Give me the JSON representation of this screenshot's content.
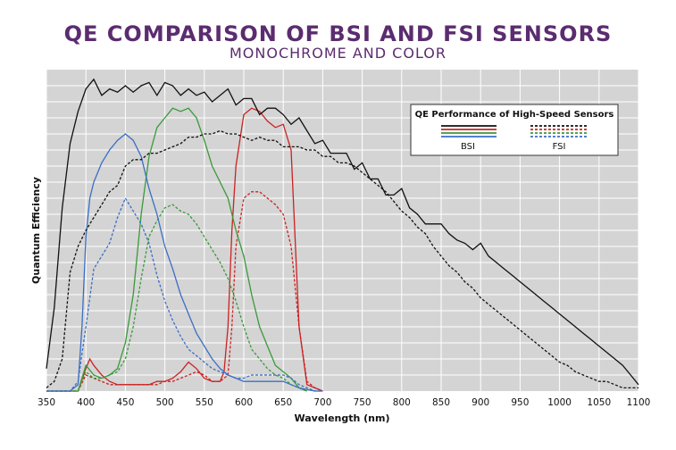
{
  "colors": {
    "title": "#5b2c6f",
    "plot_background": "#d4d4d4",
    "grid": "#ffffff",
    "mono": "#111111",
    "red": "#cc2222",
    "green": "#3a9a3a",
    "blue": "#3a6fc4"
  },
  "chart_data": {
    "type": "line",
    "title": "QE COMPARISON OF BSI AND FSI SENSORS",
    "subtitle": "MONOCHROME AND COLOR",
    "xlabel": "Wavelength (nm)",
    "ylabel": "Quantum Efficiency",
    "xlim": [
      350,
      1100
    ],
    "ylim": [
      0,
      1
    ],
    "x_ticks": [
      350,
      400,
      450,
      500,
      550,
      600,
      650,
      700,
      750,
      800,
      850,
      900,
      950,
      1000,
      1050,
      1100
    ],
    "grid": true,
    "legend": {
      "placement": "top-right",
      "title": "QE Performance of High-Speed Sensors",
      "entries": [
        "BSI",
        "FSI"
      ]
    },
    "series": [
      {
        "name": "BSI",
        "sensor": "mono",
        "color": "#111111",
        "dashed": false,
        "x": [
          350,
          360,
          370,
          380,
          390,
          400,
          410,
          420,
          430,
          440,
          450,
          460,
          470,
          480,
          490,
          500,
          510,
          520,
          530,
          540,
          550,
          560,
          570,
          580,
          590,
          600,
          610,
          620,
          630,
          640,
          650,
          660,
          670,
          680,
          690,
          700,
          710,
          720,
          730,
          740,
          750,
          760,
          770,
          780,
          790,
          800,
          810,
          820,
          830,
          840,
          850,
          860,
          870,
          880,
          890,
          900,
          910,
          920,
          930,
          940,
          950,
          960,
          970,
          980,
          990,
          1000,
          1010,
          1020,
          1030,
          1040,
          1050,
          1060,
          1070,
          1080,
          1090,
          1100
        ],
        "y": [
          0.07,
          0.26,
          0.57,
          0.77,
          0.87,
          0.94,
          0.97,
          0.92,
          0.94,
          0.93,
          0.95,
          0.93,
          0.95,
          0.96,
          0.92,
          0.96,
          0.95,
          0.92,
          0.94,
          0.92,
          0.93,
          0.9,
          0.92,
          0.94,
          0.89,
          0.91,
          0.91,
          0.86,
          0.88,
          0.88,
          0.86,
          0.83,
          0.85,
          0.81,
          0.77,
          0.78,
          0.74,
          0.74,
          0.74,
          0.69,
          0.71,
          0.66,
          0.66,
          0.61,
          0.61,
          0.63,
          0.57,
          0.55,
          0.52,
          0.52,
          0.52,
          0.49,
          0.47,
          0.46,
          0.44,
          0.46,
          0.42,
          0.4,
          0.38,
          0.36,
          0.34,
          0.32,
          0.3,
          0.28,
          0.26,
          0.24,
          0.22,
          0.2,
          0.18,
          0.16,
          0.14,
          0.12,
          0.1,
          0.08,
          0.05,
          0.02
        ]
      },
      {
        "name": "FSI",
        "sensor": "mono",
        "color": "#111111",
        "dashed": true,
        "x": [
          350,
          360,
          370,
          380,
          390,
          400,
          410,
          420,
          430,
          440,
          450,
          460,
          470,
          480,
          490,
          500,
          510,
          520,
          530,
          540,
          550,
          560,
          570,
          580,
          590,
          600,
          610,
          620,
          630,
          640,
          650,
          660,
          670,
          680,
          690,
          700,
          710,
          720,
          730,
          740,
          750,
          760,
          770,
          780,
          790,
          800,
          810,
          820,
          830,
          840,
          850,
          860,
          870,
          880,
          890,
          900,
          910,
          920,
          930,
          940,
          950,
          960,
          970,
          980,
          990,
          1000,
          1010,
          1020,
          1030,
          1040,
          1050,
          1060,
          1070,
          1080,
          1090,
          1100
        ],
        "y": [
          0.01,
          0.03,
          0.1,
          0.37,
          0.45,
          0.5,
          0.54,
          0.58,
          0.62,
          0.64,
          0.7,
          0.72,
          0.72,
          0.74,
          0.74,
          0.75,
          0.76,
          0.77,
          0.79,
          0.79,
          0.8,
          0.8,
          0.81,
          0.8,
          0.8,
          0.79,
          0.78,
          0.79,
          0.78,
          0.78,
          0.76,
          0.76,
          0.76,
          0.75,
          0.75,
          0.73,
          0.73,
          0.71,
          0.71,
          0.7,
          0.68,
          0.66,
          0.64,
          0.62,
          0.59,
          0.56,
          0.54,
          0.51,
          0.49,
          0.45,
          0.42,
          0.39,
          0.37,
          0.34,
          0.32,
          0.29,
          0.27,
          0.25,
          0.23,
          0.21,
          0.19,
          0.17,
          0.15,
          0.13,
          0.11,
          0.09,
          0.08,
          0.06,
          0.05,
          0.04,
          0.03,
          0.03,
          0.02,
          0.01,
          0.01,
          0.01
        ]
      },
      {
        "name": "BSI",
        "sensor": "blue",
        "color": "#3a6fc4",
        "dashed": false,
        "x": [
          350,
          380,
          390,
          395,
          400,
          405,
          410,
          420,
          430,
          440,
          450,
          460,
          470,
          480,
          490,
          500,
          510,
          520,
          530,
          540,
          550,
          560,
          570,
          580,
          590,
          600,
          610,
          620,
          630,
          640,
          650,
          660,
          670,
          680,
          690,
          700
        ],
        "y": [
          0.0,
          0.0,
          0.02,
          0.2,
          0.48,
          0.6,
          0.65,
          0.71,
          0.75,
          0.78,
          0.8,
          0.78,
          0.73,
          0.63,
          0.55,
          0.45,
          0.38,
          0.3,
          0.24,
          0.18,
          0.14,
          0.1,
          0.07,
          0.05,
          0.04,
          0.03,
          0.03,
          0.03,
          0.03,
          0.03,
          0.03,
          0.02,
          0.01,
          0.005,
          0.0,
          0.0
        ]
      },
      {
        "name": "FSI",
        "sensor": "blue",
        "color": "#3a6fc4",
        "dashed": true,
        "x": [
          350,
          380,
          390,
          400,
          410,
          420,
          430,
          440,
          450,
          460,
          470,
          480,
          490,
          500,
          510,
          520,
          530,
          540,
          550,
          560,
          570,
          580,
          590,
          600,
          610,
          620,
          630,
          640,
          650,
          660,
          670,
          680,
          690,
          700
        ],
        "y": [
          0.0,
          0.0,
          0.03,
          0.2,
          0.38,
          0.42,
          0.46,
          0.54,
          0.6,
          0.56,
          0.52,
          0.46,
          0.36,
          0.28,
          0.22,
          0.17,
          0.13,
          0.11,
          0.09,
          0.07,
          0.06,
          0.05,
          0.04,
          0.04,
          0.05,
          0.05,
          0.05,
          0.05,
          0.05,
          0.04,
          0.02,
          0.01,
          0.0,
          0.0
        ]
      },
      {
        "name": "BSI",
        "sensor": "green",
        "color": "#3a9a3a",
        "dashed": false,
        "x": [
          350,
          390,
          400,
          410,
          420,
          430,
          440,
          450,
          460,
          470,
          480,
          490,
          500,
          510,
          520,
          530,
          540,
          550,
          560,
          570,
          580,
          590,
          600,
          610,
          620,
          630,
          640,
          650,
          660,
          670,
          680
        ],
        "y": [
          0.0,
          0.0,
          0.08,
          0.05,
          0.04,
          0.05,
          0.07,
          0.15,
          0.3,
          0.55,
          0.73,
          0.82,
          0.85,
          0.88,
          0.87,
          0.88,
          0.85,
          0.78,
          0.7,
          0.65,
          0.6,
          0.5,
          0.42,
          0.3,
          0.2,
          0.14,
          0.08,
          0.06,
          0.04,
          0.01,
          0.0
        ]
      },
      {
        "name": "FSI",
        "sensor": "green",
        "color": "#3a9a3a",
        "dashed": true,
        "x": [
          350,
          390,
          400,
          410,
          420,
          430,
          440,
          450,
          460,
          470,
          480,
          490,
          500,
          510,
          520,
          530,
          540,
          550,
          560,
          570,
          580,
          590,
          600,
          610,
          620,
          630,
          640,
          650,
          660,
          670,
          680
        ],
        "y": [
          0.0,
          0.0,
          0.06,
          0.04,
          0.04,
          0.05,
          0.06,
          0.1,
          0.2,
          0.35,
          0.48,
          0.53,
          0.57,
          0.58,
          0.56,
          0.55,
          0.52,
          0.48,
          0.44,
          0.4,
          0.35,
          0.28,
          0.2,
          0.13,
          0.1,
          0.07,
          0.05,
          0.04,
          0.02,
          0.01,
          0.0
        ]
      },
      {
        "name": "BSI",
        "sensor": "red",
        "color": "#cc2222",
        "dashed": false,
        "x": [
          350,
          390,
          400,
          405,
          410,
          420,
          430,
          440,
          450,
          460,
          470,
          480,
          490,
          500,
          510,
          520,
          530,
          540,
          550,
          560,
          570,
          575,
          580,
          585,
          590,
          600,
          610,
          620,
          630,
          640,
          650,
          660,
          670,
          680,
          690,
          700
        ],
        "y": [
          0.0,
          0.0,
          0.07,
          0.1,
          0.08,
          0.05,
          0.03,
          0.02,
          0.02,
          0.02,
          0.02,
          0.02,
          0.03,
          0.03,
          0.04,
          0.06,
          0.09,
          0.07,
          0.04,
          0.03,
          0.03,
          0.06,
          0.2,
          0.5,
          0.7,
          0.86,
          0.88,
          0.87,
          0.84,
          0.82,
          0.83,
          0.75,
          0.2,
          0.02,
          0.01,
          0.0
        ]
      },
      {
        "name": "FSI",
        "sensor": "red",
        "color": "#cc2222",
        "dashed": true,
        "x": [
          350,
          390,
          400,
          410,
          420,
          430,
          440,
          450,
          460,
          470,
          480,
          490,
          500,
          510,
          520,
          530,
          540,
          550,
          560,
          570,
          580,
          585,
          590,
          600,
          610,
          620,
          630,
          640,
          650,
          660,
          670,
          680,
          690,
          700
        ],
        "y": [
          0.0,
          0.0,
          0.05,
          0.04,
          0.03,
          0.02,
          0.02,
          0.02,
          0.02,
          0.02,
          0.02,
          0.02,
          0.03,
          0.03,
          0.04,
          0.05,
          0.06,
          0.05,
          0.03,
          0.03,
          0.05,
          0.2,
          0.45,
          0.6,
          0.62,
          0.62,
          0.6,
          0.58,
          0.55,
          0.45,
          0.2,
          0.03,
          0.01,
          0.0
        ]
      }
    ]
  }
}
